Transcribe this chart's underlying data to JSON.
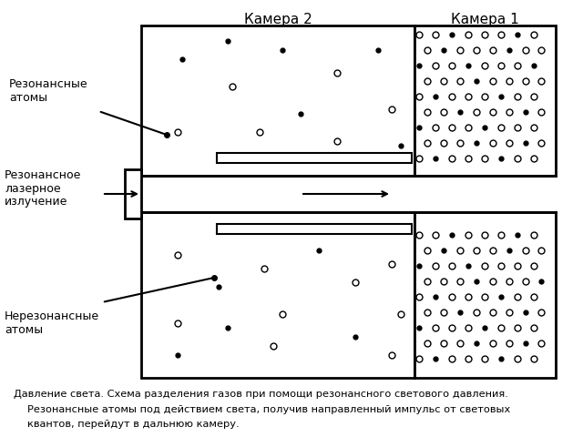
{
  "title_camera2": "Камера 2",
  "title_camera1": "Камера 1",
  "label_resonant": "Резонансные\nатомы",
  "label_laser": "Резонансное\nлазерное\nизлучение",
  "label_nonresonant": "Нерезонансные\nатомы",
  "caption_line1": "Давление света. Схема разделения газов при помощи резонансного светового давления.",
  "caption_line2": "Резонансные атомы под действием света, получив направленный импульс от световых",
  "caption_line3": "квантов, перейдут в дальнюю камеру.",
  "bg_color": "#ffffff",
  "upper_atoms": [
    [
      200,
      65,
      "f"
    ],
    [
      255,
      95,
      "o"
    ],
    [
      310,
      55,
      "f"
    ],
    [
      370,
      80,
      "o"
    ],
    [
      415,
      55,
      "f"
    ],
    [
      430,
      120,
      "o"
    ],
    [
      330,
      125,
      "f"
    ],
    [
      285,
      145,
      "o"
    ],
    [
      195,
      145,
      "o"
    ],
    [
      440,
      160,
      "f"
    ],
    [
      370,
      155,
      "o"
    ],
    [
      250,
      45,
      "f"
    ]
  ],
  "lower_atoms": [
    [
      195,
      280,
      "o"
    ],
    [
      240,
      315,
      "f"
    ],
    [
      290,
      295,
      "o"
    ],
    [
      350,
      275,
      "f"
    ],
    [
      390,
      310,
      "o"
    ],
    [
      430,
      290,
      "o"
    ],
    [
      310,
      345,
      "o"
    ],
    [
      250,
      360,
      "f"
    ],
    [
      195,
      355,
      "o"
    ],
    [
      390,
      370,
      "f"
    ],
    [
      440,
      345,
      "o"
    ],
    [
      300,
      380,
      "o"
    ],
    [
      195,
      390,
      "f"
    ],
    [
      430,
      390,
      "o"
    ]
  ],
  "cam1_upper_atoms": [
    [
      460,
      38,
      "o"
    ],
    [
      478,
      38,
      "o"
    ],
    [
      496,
      38,
      "f"
    ],
    [
      514,
      38,
      "o"
    ],
    [
      532,
      38,
      "o"
    ],
    [
      550,
      38,
      "o"
    ],
    [
      568,
      38,
      "f"
    ],
    [
      586,
      38,
      "o"
    ],
    [
      469,
      55,
      "o"
    ],
    [
      487,
      55,
      "f"
    ],
    [
      505,
      55,
      "o"
    ],
    [
      523,
      55,
      "o"
    ],
    [
      541,
      55,
      "o"
    ],
    [
      559,
      55,
      "f"
    ],
    [
      577,
      55,
      "o"
    ],
    [
      594,
      55,
      "o"
    ],
    [
      460,
      72,
      "f"
    ],
    [
      478,
      72,
      "o"
    ],
    [
      496,
      72,
      "o"
    ],
    [
      514,
      72,
      "f"
    ],
    [
      532,
      72,
      "o"
    ],
    [
      550,
      72,
      "o"
    ],
    [
      568,
      72,
      "o"
    ],
    [
      586,
      72,
      "f"
    ],
    [
      469,
      89,
      "o"
    ],
    [
      487,
      89,
      "o"
    ],
    [
      505,
      89,
      "o"
    ],
    [
      523,
      89,
      "f"
    ],
    [
      541,
      89,
      "o"
    ],
    [
      559,
      89,
      "o"
    ],
    [
      577,
      89,
      "o"
    ],
    [
      594,
      89,
      "o"
    ],
    [
      460,
      106,
      "o"
    ],
    [
      478,
      106,
      "f"
    ],
    [
      496,
      106,
      "o"
    ],
    [
      514,
      106,
      "o"
    ],
    [
      532,
      106,
      "o"
    ],
    [
      550,
      106,
      "f"
    ],
    [
      568,
      106,
      "o"
    ],
    [
      586,
      106,
      "o"
    ],
    [
      469,
      123,
      "o"
    ],
    [
      487,
      123,
      "o"
    ],
    [
      505,
      123,
      "f"
    ],
    [
      523,
      123,
      "o"
    ],
    [
      541,
      123,
      "o"
    ],
    [
      559,
      123,
      "o"
    ],
    [
      577,
      123,
      "f"
    ],
    [
      594,
      123,
      "o"
    ],
    [
      460,
      140,
      "f"
    ],
    [
      478,
      140,
      "o"
    ],
    [
      496,
      140,
      "o"
    ],
    [
      514,
      140,
      "o"
    ],
    [
      532,
      140,
      "f"
    ],
    [
      550,
      140,
      "o"
    ],
    [
      568,
      140,
      "o"
    ],
    [
      586,
      140,
      "o"
    ],
    [
      469,
      157,
      "o"
    ],
    [
      487,
      157,
      "o"
    ],
    [
      505,
      157,
      "o"
    ],
    [
      523,
      157,
      "f"
    ],
    [
      541,
      157,
      "o"
    ],
    [
      559,
      157,
      "o"
    ],
    [
      577,
      157,
      "f"
    ],
    [
      594,
      157,
      "o"
    ],
    [
      460,
      174,
      "o"
    ],
    [
      478,
      174,
      "f"
    ],
    [
      496,
      174,
      "o"
    ],
    [
      514,
      174,
      "o"
    ],
    [
      532,
      174,
      "o"
    ],
    [
      550,
      174,
      "f"
    ],
    [
      568,
      174,
      "o"
    ],
    [
      586,
      174,
      "o"
    ]
  ],
  "cam1_lower_atoms": [
    [
      460,
      258,
      "o"
    ],
    [
      478,
      258,
      "o"
    ],
    [
      496,
      258,
      "f"
    ],
    [
      514,
      258,
      "o"
    ],
    [
      532,
      258,
      "o"
    ],
    [
      550,
      258,
      "o"
    ],
    [
      568,
      258,
      "f"
    ],
    [
      586,
      258,
      "o"
    ],
    [
      469,
      275,
      "o"
    ],
    [
      487,
      275,
      "f"
    ],
    [
      505,
      275,
      "o"
    ],
    [
      523,
      275,
      "o"
    ],
    [
      541,
      275,
      "o"
    ],
    [
      559,
      275,
      "f"
    ],
    [
      577,
      275,
      "o"
    ],
    [
      594,
      275,
      "o"
    ],
    [
      460,
      292,
      "f"
    ],
    [
      478,
      292,
      "o"
    ],
    [
      496,
      292,
      "o"
    ],
    [
      514,
      292,
      "f"
    ],
    [
      532,
      292,
      "o"
    ],
    [
      550,
      292,
      "o"
    ],
    [
      568,
      292,
      "o"
    ],
    [
      586,
      292,
      "o"
    ],
    [
      469,
      309,
      "o"
    ],
    [
      487,
      309,
      "o"
    ],
    [
      505,
      309,
      "o"
    ],
    [
      523,
      309,
      "f"
    ],
    [
      541,
      309,
      "o"
    ],
    [
      559,
      309,
      "o"
    ],
    [
      577,
      309,
      "o"
    ],
    [
      594,
      309,
      "f"
    ],
    [
      460,
      326,
      "o"
    ],
    [
      478,
      326,
      "f"
    ],
    [
      496,
      326,
      "o"
    ],
    [
      514,
      326,
      "o"
    ],
    [
      532,
      326,
      "o"
    ],
    [
      550,
      326,
      "f"
    ],
    [
      568,
      326,
      "o"
    ],
    [
      586,
      326,
      "o"
    ],
    [
      469,
      343,
      "o"
    ],
    [
      487,
      343,
      "o"
    ],
    [
      505,
      343,
      "f"
    ],
    [
      523,
      343,
      "o"
    ],
    [
      541,
      343,
      "o"
    ],
    [
      559,
      343,
      "o"
    ],
    [
      577,
      343,
      "f"
    ],
    [
      594,
      343,
      "o"
    ],
    [
      460,
      360,
      "f"
    ],
    [
      478,
      360,
      "o"
    ],
    [
      496,
      360,
      "o"
    ],
    [
      514,
      360,
      "o"
    ],
    [
      532,
      360,
      "f"
    ],
    [
      550,
      360,
      "o"
    ],
    [
      568,
      360,
      "o"
    ],
    [
      586,
      360,
      "o"
    ],
    [
      469,
      377,
      "o"
    ],
    [
      487,
      377,
      "o"
    ],
    [
      505,
      377,
      "o"
    ],
    [
      523,
      377,
      "f"
    ],
    [
      541,
      377,
      "o"
    ],
    [
      559,
      377,
      "o"
    ],
    [
      577,
      377,
      "f"
    ],
    [
      594,
      377,
      "o"
    ],
    [
      460,
      394,
      "o"
    ],
    [
      478,
      394,
      "f"
    ],
    [
      496,
      394,
      "o"
    ],
    [
      514,
      394,
      "o"
    ],
    [
      532,
      394,
      "o"
    ],
    [
      550,
      394,
      "f"
    ],
    [
      568,
      394,
      "o"
    ],
    [
      586,
      394,
      "o"
    ]
  ]
}
